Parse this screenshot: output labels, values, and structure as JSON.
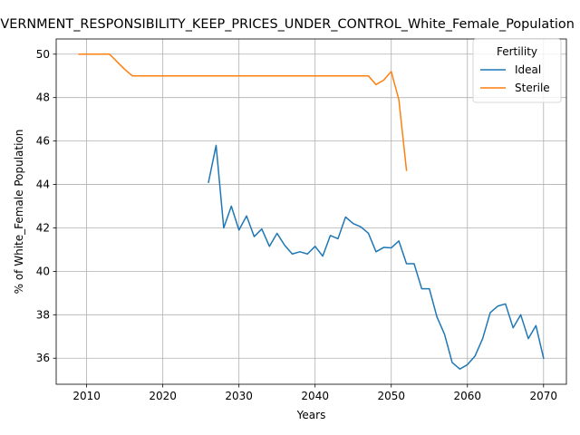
{
  "chart_data": {
    "type": "line",
    "title": "GOVERNMENT_RESPONSIBILITY_KEEP_PRICES_UNDER_CONTROL_White_Female_Population",
    "xlabel": "Years",
    "ylabel": "% of White_Female Population",
    "xlim": [
      2006,
      2073
    ],
    "ylim": [
      34.8,
      50.7
    ],
    "xticks": [
      2010,
      2020,
      2030,
      2040,
      2050,
      2060,
      2070
    ],
    "yticks": [
      36,
      38,
      40,
      42,
      44,
      46,
      48,
      50
    ],
    "grid": true,
    "legend": {
      "title": "Fertility",
      "position": "top-right"
    },
    "series": [
      {
        "name": "Ideal",
        "color": "#1f77b4",
        "x": [
          2026,
          2027,
          2028,
          2029,
          2030,
          2031,
          2032,
          2033,
          2034,
          2035,
          2036,
          2037,
          2038,
          2039,
          2040,
          2041,
          2042,
          2043,
          2044,
          2045,
          2046,
          2047,
          2048,
          2049,
          2050,
          2051,
          2052,
          2053,
          2054,
          2055,
          2056,
          2057,
          2058,
          2059,
          2060,
          2061,
          2062,
          2063,
          2064,
          2065,
          2066,
          2067,
          2068,
          2069,
          2070
        ],
        "y": [
          44.1,
          45.8,
          42.0,
          43.0,
          41.9,
          42.55,
          41.6,
          41.95,
          41.15,
          41.75,
          41.2,
          40.8,
          40.9,
          40.8,
          41.15,
          40.7,
          41.65,
          41.5,
          42.5,
          42.2,
          42.05,
          41.75,
          40.9,
          41.1,
          41.08,
          41.4,
          40.35,
          40.35,
          39.2,
          39.2,
          37.9,
          37.1,
          35.8,
          35.5,
          35.7,
          36.1,
          36.9,
          38.1,
          38.4,
          38.5,
          37.4,
          38.0,
          36.9,
          37.5,
          36.0
        ]
      },
      {
        "name": "Sterile",
        "color": "#ff7f0e",
        "x": [
          2009,
          2010,
          2011,
          2012,
          2013,
          2014,
          2015,
          2016,
          2017,
          2018,
          2019,
          2020,
          2021,
          2022,
          2023,
          2024,
          2025,
          2026,
          2027,
          2028,
          2029,
          2030,
          2031,
          2032,
          2033,
          2034,
          2035,
          2036,
          2037,
          2038,
          2039,
          2040,
          2041,
          2042,
          2043,
          2044,
          2045,
          2046,
          2047,
          2048,
          2049,
          2050,
          2051,
          2052
        ],
        "y": [
          50,
          50,
          50,
          50,
          50,
          49.65,
          49.3,
          49,
          49,
          49,
          49,
          49,
          49,
          49,
          49,
          49,
          49,
          49,
          49,
          49,
          49,
          49,
          49,
          49,
          49,
          49,
          49,
          49,
          49,
          49,
          49,
          49,
          49,
          49,
          49,
          49,
          49,
          49,
          49,
          48.6,
          48.8,
          49.2,
          47.9,
          44.65
        ]
      }
    ]
  }
}
